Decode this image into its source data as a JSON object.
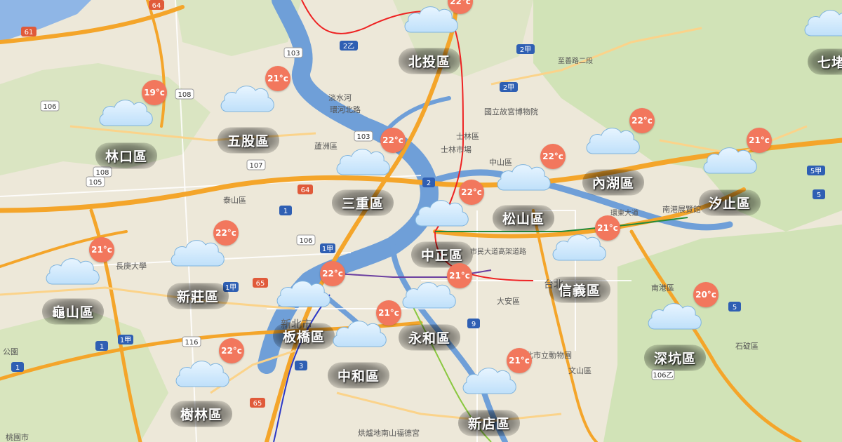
{
  "map": {
    "colors": {
      "land": "#ede8d9",
      "forest": "#cfe3b4",
      "water": "#6f9fd8",
      "sea": "#8fb6e6",
      "highway": "#f4a52a",
      "road": "#fbd38a",
      "temp_badge": "#f2775d",
      "cloud": "#bfe0fa"
    },
    "cloud_icon": "cloud-icon",
    "districts": [
      {
        "name": "北投區",
        "temp": "22°c"
      },
      {
        "name": "七堵",
        "temp": ""
      },
      {
        "name": "林口區",
        "temp": "19°c"
      },
      {
        "name": "五股區",
        "temp": "21°c"
      },
      {
        "name": "三重區",
        "temp": "22°c"
      },
      {
        "name": "內湖區",
        "temp": "22°c"
      },
      {
        "name": "汐止區",
        "temp": "21°c"
      },
      {
        "name": "松山區",
        "temp": "22°c"
      },
      {
        "name": "中正區",
        "temp": "22°c"
      },
      {
        "name": "信義區",
        "temp": "21°c"
      },
      {
        "name": "新莊區",
        "temp": "22°c"
      },
      {
        "name": "龜山區",
        "temp": "21°c"
      },
      {
        "name": "板橋區",
        "temp": "22°c"
      },
      {
        "name": "永和區",
        "temp": "21°c"
      },
      {
        "name": "中和區",
        "temp": "21°c"
      },
      {
        "name": "深坑區",
        "temp": "20°c"
      },
      {
        "name": "樹林區",
        "temp": "22°c"
      },
      {
        "name": "新店區",
        "temp": "21°c"
      }
    ],
    "place_labels": [
      "淡水河",
      "環河北路",
      "國立故宮博物院",
      "士林區",
      "士林市場",
      "中山區",
      "蘆洲區",
      "泰山區",
      "長庚大學",
      "南港展覽館",
      "南港區",
      "大安區",
      "臺北市立動物園",
      "文山區",
      "石碇區",
      "烘爐地南山福德宮",
      "新北市",
      "桃園市",
      "市民大道高架道路",
      "環東大道",
      "至善路二段",
      "台北",
      "公園"
    ],
    "road_shields": [
      "64",
      "61",
      "103",
      "2乙",
      "2甲",
      "108",
      "106",
      "107",
      "1",
      "65",
      "3",
      "116",
      "106乙",
      "5甲",
      "5",
      "9",
      "2"
    ]
  }
}
